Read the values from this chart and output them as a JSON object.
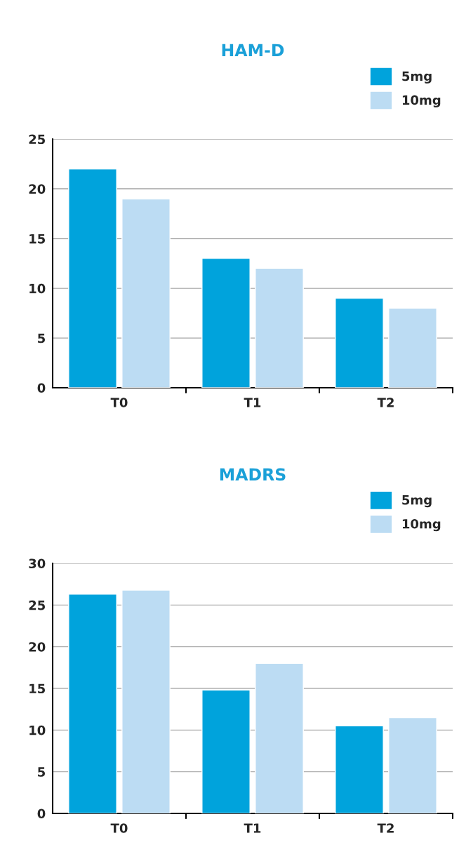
{
  "chart_data": [
    {
      "type": "bar",
      "title": "HAM-D",
      "categories": [
        "T0",
        "T1",
        "T2"
      ],
      "series": [
        {
          "name": "5mg",
          "color": "#00a3dc",
          "values": [
            22,
            13,
            9
          ]
        },
        {
          "name": "10mg",
          "color": "#bcdcf3",
          "values": [
            19,
            12,
            8
          ]
        }
      ],
      "ylim": [
        0,
        25
      ],
      "yticks": [
        0,
        5,
        10,
        15,
        20,
        25
      ],
      "grid": "y",
      "legend": "top right"
    },
    {
      "type": "bar",
      "title": "MADRS",
      "categories": [
        "T0",
        "T1",
        "T2"
      ],
      "series": [
        {
          "name": "5mg",
          "color": "#00a3dc",
          "values": [
            26.3,
            14.8,
            10.5
          ]
        },
        {
          "name": "10mg",
          "color": "#bcdcf3",
          "values": [
            26.8,
            18,
            11.5
          ]
        }
      ],
      "ylim": [
        0,
        30
      ],
      "yticks": [
        0,
        5,
        10,
        15,
        20,
        25,
        30
      ],
      "grid": "y",
      "legend": "top right"
    }
  ]
}
